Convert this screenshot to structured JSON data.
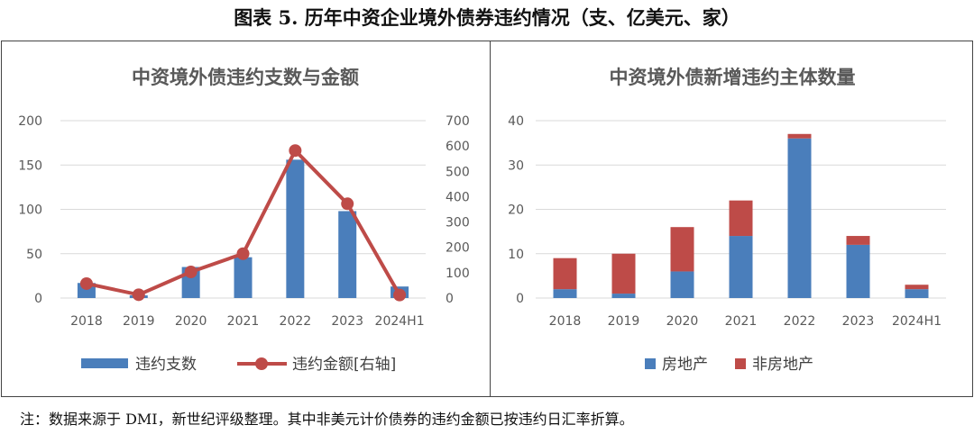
{
  "figure_title": "图表 5. 历年中资企业境外债券违约情况（支、亿美元、家）",
  "note": "注：数据来源于 DMI，新世纪评级整理。其中非美元计价债券的违约金额已按违约日汇率折算。",
  "colors": {
    "blue": "#4a7ebb",
    "red": "#be4b48",
    "grid": "#d9d9d9",
    "axis_text": "#595959",
    "title_text": "#595959"
  },
  "chart_data": [
    {
      "type": "bar",
      "title": "中资境外债违约支数与金额",
      "categories": [
        "2018",
        "2019",
        "2020",
        "2021",
        "2022",
        "2023",
        "2024H1"
      ],
      "yticks": [
        "0",
        "50",
        "100",
        "150",
        "200"
      ],
      "ylim": [
        0,
        200
      ],
      "y2ticks": [
        "0",
        "100",
        "200",
        "300",
        "400",
        "500",
        "600",
        "700"
      ],
      "y2lim": [
        0,
        700
      ],
      "series": [
        {
          "name": "违约支数",
          "kind": "bar",
          "axis": "left",
          "color": "#4a7ebb",
          "values": [
            17,
            3,
            35,
            46,
            156,
            98,
            13
          ]
        },
        {
          "name": "违约金额[右轴]",
          "kind": "line",
          "axis": "right",
          "color": "#be4b48",
          "values": [
            57,
            13,
            103,
            175,
            582,
            372,
            12
          ]
        }
      ],
      "legend_position": "bottom",
      "grid": true
    },
    {
      "type": "bar",
      "stacked": true,
      "title": "中资境外债新增违约主体数量",
      "categories": [
        "2018",
        "2019",
        "2020",
        "2021",
        "2022",
        "2023",
        "2024H1"
      ],
      "yticks": [
        "0",
        "10",
        "20",
        "30",
        "40"
      ],
      "ylim": [
        0,
        40
      ],
      "series": [
        {
          "name": "房地产",
          "color": "#4a7ebb",
          "values": [
            2,
            1,
            6,
            14,
            36,
            12,
            2
          ]
        },
        {
          "name": "非房地产",
          "color": "#be4b48",
          "values": [
            7,
            9,
            10,
            8,
            1,
            2,
            1
          ]
        }
      ],
      "legend_position": "bottom",
      "grid": true
    }
  ]
}
